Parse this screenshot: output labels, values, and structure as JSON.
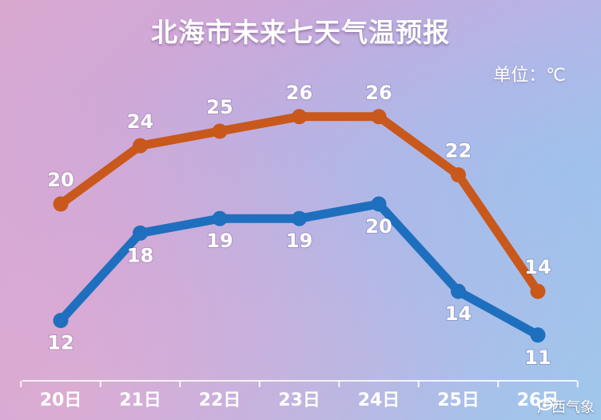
{
  "chart_data": {
    "type": "line",
    "title": "北海市未来七天气温预报",
    "unit_label": "单位：℃",
    "categories": [
      "20日",
      "21日",
      "22日",
      "23日",
      "24日",
      "25日",
      "26日"
    ],
    "series": [
      {
        "values": [
          20,
          24,
          25,
          26,
          26,
          22,
          14
        ],
        "color": "#c8581c"
      },
      {
        "values": [
          12,
          18,
          19,
          19,
          20,
          14,
          11
        ],
        "color": "#1f6fbf"
      }
    ],
    "legend": "none",
    "grid": false
  },
  "watermark": {
    "icon": "weibo-icon",
    "text": "广西气象"
  }
}
